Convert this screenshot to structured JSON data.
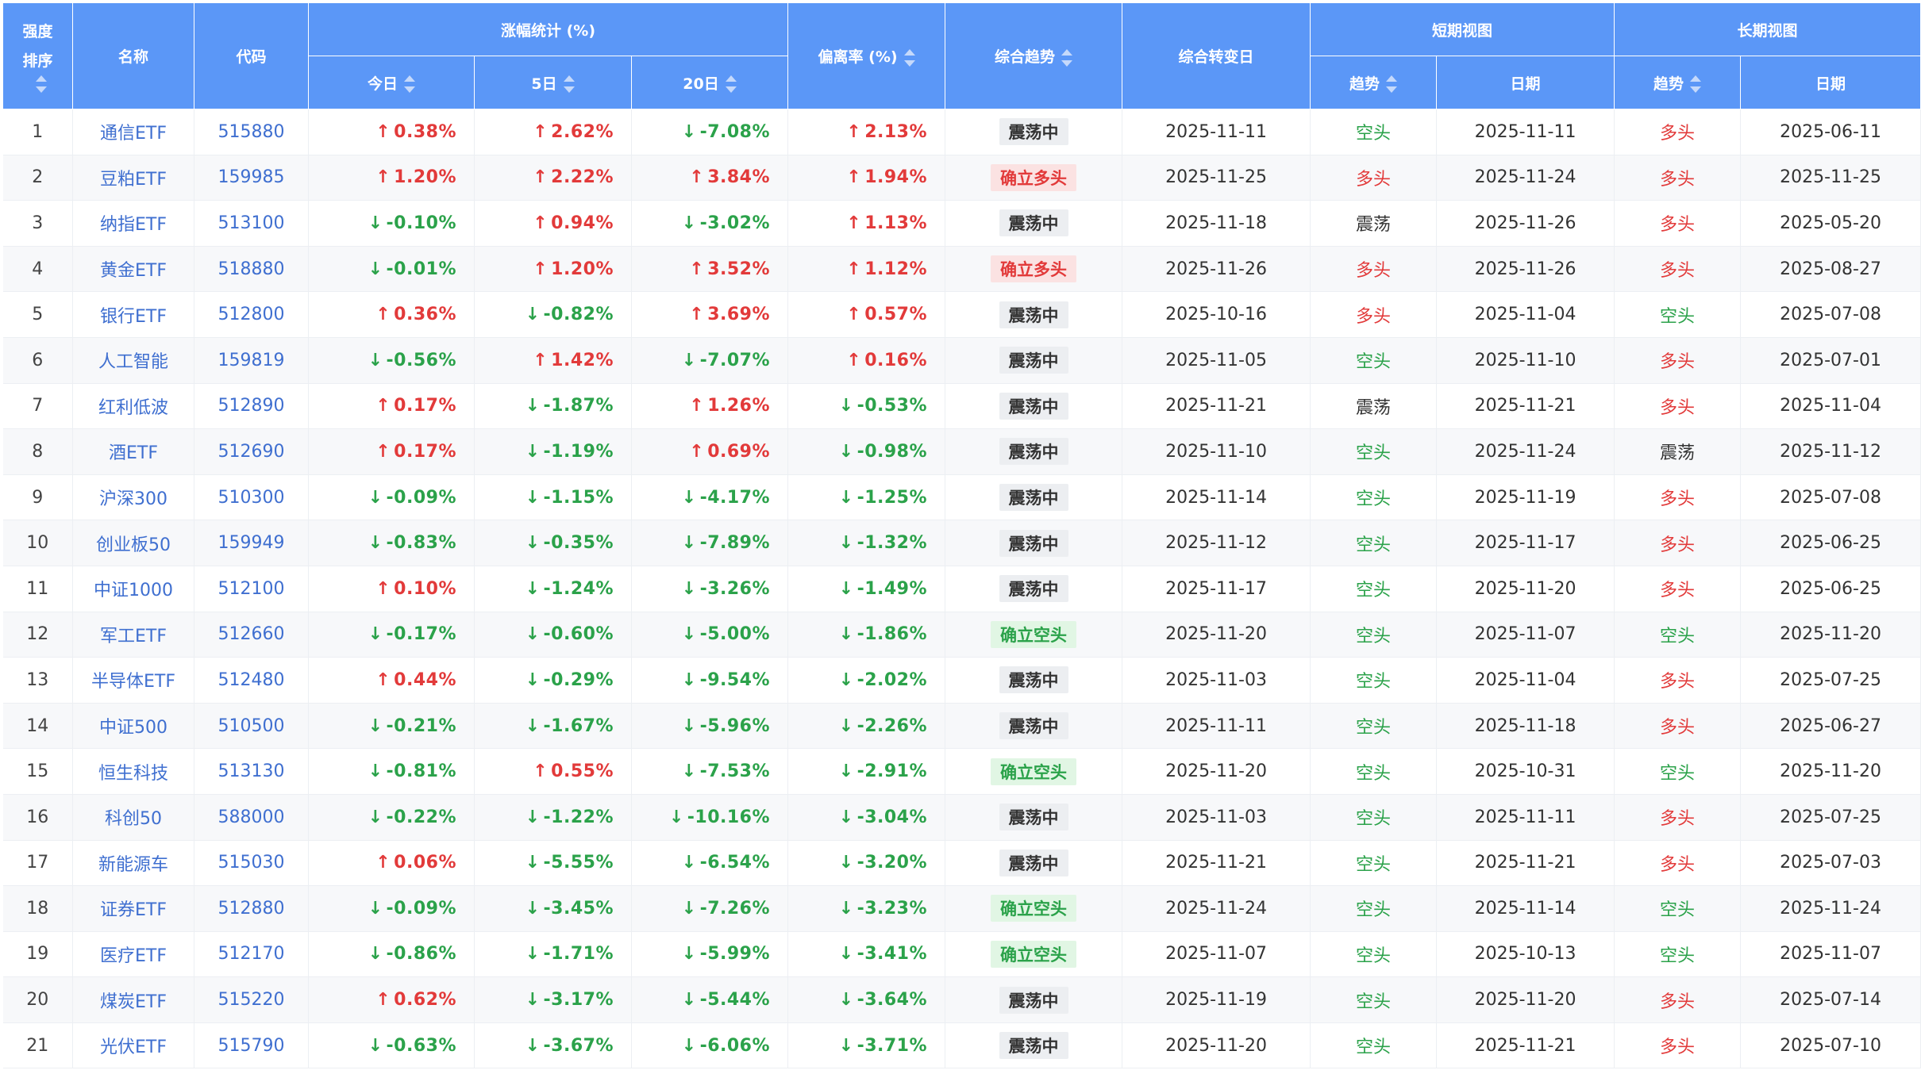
{
  "headers": {
    "rank_line1": "强度",
    "rank_line2": "排序",
    "name": "名称",
    "code": "代码",
    "change_group": "涨幅统计 (%)",
    "today": "今日",
    "d5": "5日",
    "d20": "20日",
    "deviation": "偏离率 (%)",
    "overall": "综合趋势",
    "turn_date": "综合转变日",
    "short_group": "短期视图",
    "long_group": "长期视图",
    "trend": "趋势",
    "date": "日期"
  },
  "colors": {
    "header_bg": "#5b97f7",
    "up": "#e23a3a",
    "down": "#2ba24a"
  },
  "rows": [
    {
      "rank": "1",
      "name": "通信ETF",
      "code": "515880",
      "today": "0.38%",
      "d5": "2.62%",
      "d20": "-7.08%",
      "dev": "2.13%",
      "overall": "震荡中",
      "turn": "2025-11-11",
      "st": "空头",
      "sd": "2025-11-11",
      "lt": "多头",
      "ld": "2025-06-11"
    },
    {
      "rank": "2",
      "name": "豆粕ETF",
      "code": "159985",
      "today": "1.20%",
      "d5": "2.22%",
      "d20": "3.84%",
      "dev": "1.94%",
      "overall": "确立多头",
      "turn": "2025-11-25",
      "st": "多头",
      "sd": "2025-11-24",
      "lt": "多头",
      "ld": "2025-11-25"
    },
    {
      "rank": "3",
      "name": "纳指ETF",
      "code": "513100",
      "today": "-0.10%",
      "d5": "0.94%",
      "d20": "-3.02%",
      "dev": "1.13%",
      "overall": "震荡中",
      "turn": "2025-11-18",
      "st": "震荡",
      "sd": "2025-11-26",
      "lt": "多头",
      "ld": "2025-05-20"
    },
    {
      "rank": "4",
      "name": "黄金ETF",
      "code": "518880",
      "today": "-0.01%",
      "d5": "1.20%",
      "d20": "3.52%",
      "dev": "1.12%",
      "overall": "确立多头",
      "turn": "2025-11-26",
      "st": "多头",
      "sd": "2025-11-26",
      "lt": "多头",
      "ld": "2025-08-27"
    },
    {
      "rank": "5",
      "name": "银行ETF",
      "code": "512800",
      "today": "0.36%",
      "d5": "-0.82%",
      "d20": "3.69%",
      "dev": "0.57%",
      "overall": "震荡中",
      "turn": "2025-10-16",
      "st": "多头",
      "sd": "2025-11-04",
      "lt": "空头",
      "ld": "2025-07-08"
    },
    {
      "rank": "6",
      "name": "人工智能",
      "code": "159819",
      "today": "-0.56%",
      "d5": "1.42%",
      "d20": "-7.07%",
      "dev": "0.16%",
      "overall": "震荡中",
      "turn": "2025-11-05",
      "st": "空头",
      "sd": "2025-11-10",
      "lt": "多头",
      "ld": "2025-07-01"
    },
    {
      "rank": "7",
      "name": "红利低波",
      "code": "512890",
      "today": "0.17%",
      "d5": "-1.87%",
      "d20": "1.26%",
      "dev": "-0.53%",
      "overall": "震荡中",
      "turn": "2025-11-21",
      "st": "震荡",
      "sd": "2025-11-21",
      "lt": "多头",
      "ld": "2025-11-04"
    },
    {
      "rank": "8",
      "name": "酒ETF",
      "code": "512690",
      "today": "0.17%",
      "d5": "-1.19%",
      "d20": "0.69%",
      "dev": "-0.98%",
      "overall": "震荡中",
      "turn": "2025-11-10",
      "st": "空头",
      "sd": "2025-11-24",
      "lt": "震荡",
      "ld": "2025-11-12"
    },
    {
      "rank": "9",
      "name": "沪深300",
      "code": "510300",
      "today": "-0.09%",
      "d5": "-1.15%",
      "d20": "-4.17%",
      "dev": "-1.25%",
      "overall": "震荡中",
      "turn": "2025-11-14",
      "st": "空头",
      "sd": "2025-11-19",
      "lt": "多头",
      "ld": "2025-07-08"
    },
    {
      "rank": "10",
      "name": "创业板50",
      "code": "159949",
      "today": "-0.83%",
      "d5": "-0.35%",
      "d20": "-7.89%",
      "dev": "-1.32%",
      "overall": "震荡中",
      "turn": "2025-11-12",
      "st": "空头",
      "sd": "2025-11-17",
      "lt": "多头",
      "ld": "2025-06-25"
    },
    {
      "rank": "11",
      "name": "中证1000",
      "code": "512100",
      "today": "0.10%",
      "d5": "-1.24%",
      "d20": "-3.26%",
      "dev": "-1.49%",
      "overall": "震荡中",
      "turn": "2025-11-17",
      "st": "空头",
      "sd": "2025-11-20",
      "lt": "多头",
      "ld": "2025-06-25"
    },
    {
      "rank": "12",
      "name": "军工ETF",
      "code": "512660",
      "today": "-0.17%",
      "d5": "-0.60%",
      "d20": "-5.00%",
      "dev": "-1.86%",
      "overall": "确立空头",
      "turn": "2025-11-20",
      "st": "空头",
      "sd": "2025-11-07",
      "lt": "空头",
      "ld": "2025-11-20"
    },
    {
      "rank": "13",
      "name": "半导体ETF",
      "code": "512480",
      "today": "0.44%",
      "d5": "-0.29%",
      "d20": "-9.54%",
      "dev": "-2.02%",
      "overall": "震荡中",
      "turn": "2025-11-03",
      "st": "空头",
      "sd": "2025-11-04",
      "lt": "多头",
      "ld": "2025-07-25"
    },
    {
      "rank": "14",
      "name": "中证500",
      "code": "510500",
      "today": "-0.21%",
      "d5": "-1.67%",
      "d20": "-5.96%",
      "dev": "-2.26%",
      "overall": "震荡中",
      "turn": "2025-11-11",
      "st": "空头",
      "sd": "2025-11-18",
      "lt": "多头",
      "ld": "2025-06-27"
    },
    {
      "rank": "15",
      "name": "恒生科技",
      "code": "513130",
      "today": "-0.81%",
      "d5": "0.55%",
      "d20": "-7.53%",
      "dev": "-2.91%",
      "overall": "确立空头",
      "turn": "2025-11-20",
      "st": "空头",
      "sd": "2025-10-31",
      "lt": "空头",
      "ld": "2025-11-20"
    },
    {
      "rank": "16",
      "name": "科创50",
      "code": "588000",
      "today": "-0.22%",
      "d5": "-1.22%",
      "d20": "-10.16%",
      "dev": "-3.04%",
      "overall": "震荡中",
      "turn": "2025-11-03",
      "st": "空头",
      "sd": "2025-11-11",
      "lt": "多头",
      "ld": "2025-07-25"
    },
    {
      "rank": "17",
      "name": "新能源车",
      "code": "515030",
      "today": "0.06%",
      "d5": "-5.55%",
      "d20": "-6.54%",
      "dev": "-3.20%",
      "overall": "震荡中",
      "turn": "2025-11-21",
      "st": "空头",
      "sd": "2025-11-21",
      "lt": "多头",
      "ld": "2025-07-03"
    },
    {
      "rank": "18",
      "name": "证券ETF",
      "code": "512880",
      "today": "-0.09%",
      "d5": "-3.45%",
      "d20": "-7.26%",
      "dev": "-3.23%",
      "overall": "确立空头",
      "turn": "2025-11-24",
      "st": "空头",
      "sd": "2025-11-14",
      "lt": "空头",
      "ld": "2025-11-24"
    },
    {
      "rank": "19",
      "name": "医疗ETF",
      "code": "512170",
      "today": "-0.86%",
      "d5": "-1.71%",
      "d20": "-5.99%",
      "dev": "-3.41%",
      "overall": "确立空头",
      "turn": "2025-11-07",
      "st": "空头",
      "sd": "2025-10-13",
      "lt": "空头",
      "ld": "2025-11-07"
    },
    {
      "rank": "20",
      "name": "煤炭ETF",
      "code": "515220",
      "today": "0.62%",
      "d5": "-3.17%",
      "d20": "-5.44%",
      "dev": "-3.64%",
      "overall": "震荡中",
      "turn": "2025-11-19",
      "st": "空头",
      "sd": "2025-11-20",
      "lt": "多头",
      "ld": "2025-07-14"
    },
    {
      "rank": "21",
      "name": "光伏ETF",
      "code": "515790",
      "today": "-0.63%",
      "d5": "-3.67%",
      "d20": "-6.06%",
      "dev": "-3.71%",
      "overall": "震荡中",
      "turn": "2025-11-20",
      "st": "空头",
      "sd": "2025-11-21",
      "lt": "多头",
      "ld": "2025-07-10"
    }
  ]
}
